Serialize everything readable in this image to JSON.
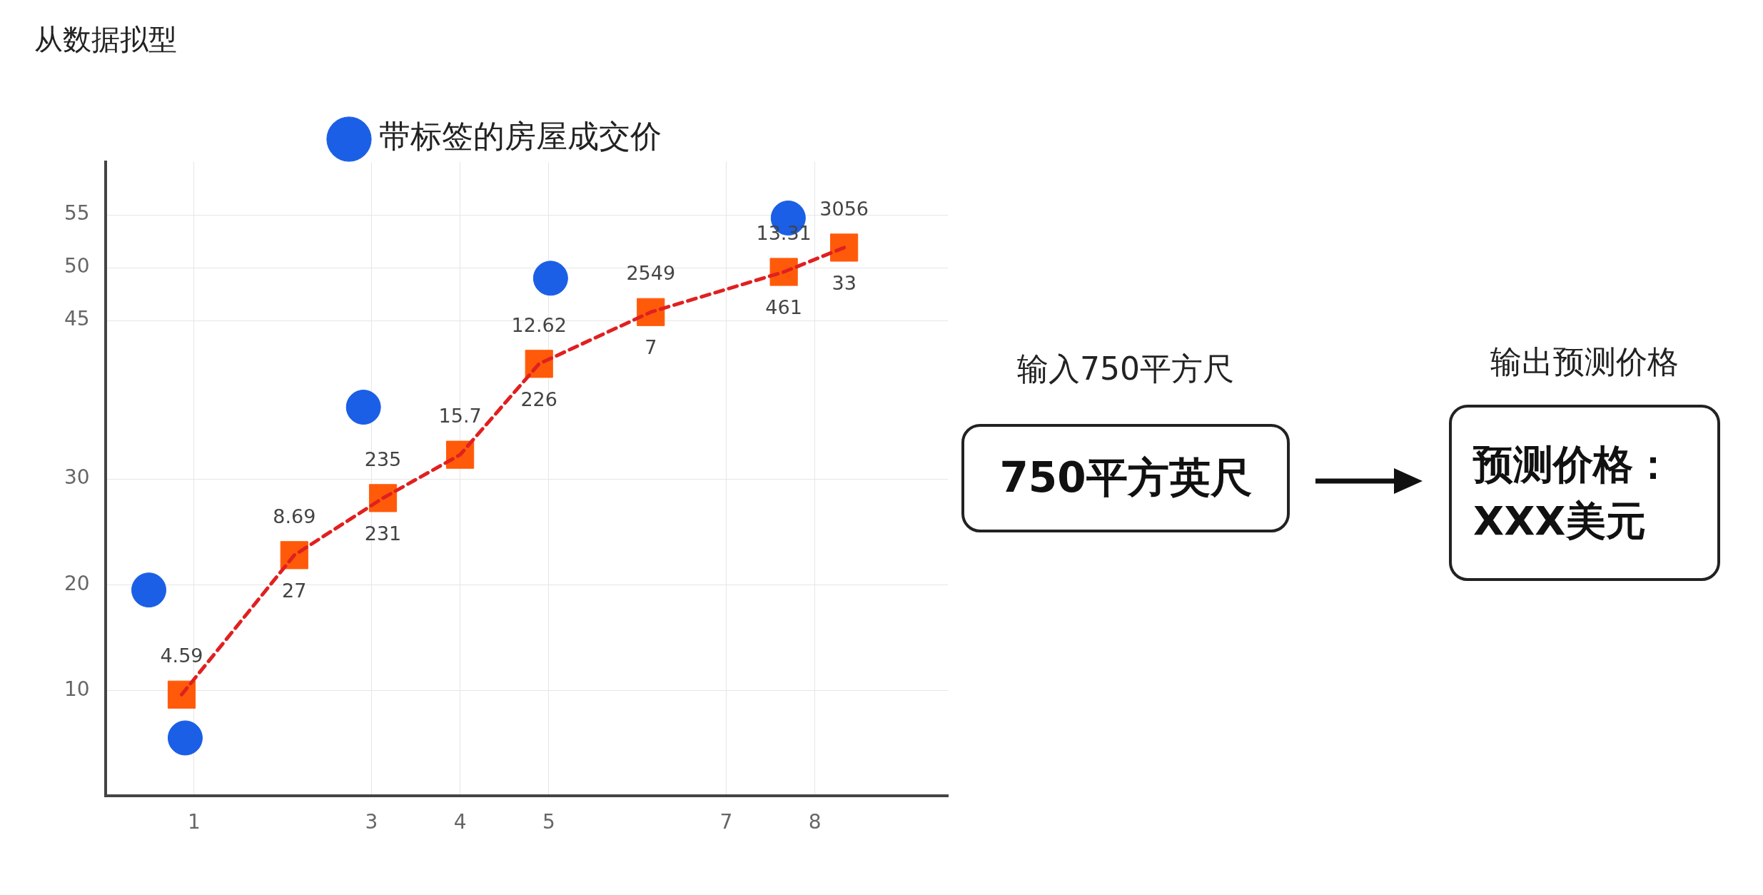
{
  "chart_data": [
    {
      "type": "scatter",
      "title": "从数据拟型",
      "xlim": [
        0,
        9.5
      ],
      "xticks": [
        1,
        3,
        4,
        5,
        7,
        8
      ],
      "ylim": [
        0,
        60
      ],
      "yticks": [
        10,
        20,
        30,
        45,
        50,
        55
      ],
      "grid": true,
      "legend": "top",
      "series": [
        {
          "type": "line",
          "color": "#e02020",
          "line_style": "dashed",
          "marker": "none",
          "x": [
            0.86,
            2.13,
            3.13,
            4,
            4.89,
            6.15,
            7.65,
            8.33
          ],
          "values": [
            9.6,
            22.8,
            28.2,
            32.3,
            40.9,
            45.8,
            49.6,
            51.9
          ]
        },
        {
          "type": "scatter",
          "color": "#ff5a0a",
          "marker": "square",
          "x": [
            0.86,
            2.13,
            3.13,
            4,
            4.89,
            6.15,
            7.65,
            8.33
          ],
          "values": [
            9.6,
            22.8,
            28.2,
            32.3,
            40.9,
            45.8,
            49.6,
            51.9
          ]
        },
        {
          "type": "scatter",
          "name": "带标签的房屋成交价",
          "color": "#1a5fe6",
          "marker": "circle",
          "x": [
            0.49,
            0.9,
            2.91,
            5.02,
            7.7
          ],
          "values": [
            19.5,
            5.5,
            36.8,
            49,
            54.7
          ]
        }
      ],
      "annotations": [
        {
          "text": "4.59",
          "x": 0.86,
          "y": 9.6
        },
        {
          "text": "8.69",
          "x": 2.13,
          "y": 22.8
        },
        {
          "text": "27",
          "x": 2.13,
          "y": 22.8
        },
        {
          "text": "235",
          "x": 3.13,
          "y": 28.2
        },
        {
          "text": "231",
          "x": 3.13,
          "y": 28.2
        },
        {
          "text": "15.7",
          "x": 4,
          "y": 32.3
        },
        {
          "text": "12.62",
          "x": 4.89,
          "y": 40.9
        },
        {
          "text": "226",
          "x": 4.89,
          "y": 40.9
        },
        {
          "text": "2549",
          "x": 6.15,
          "y": 45.8
        },
        {
          "text": "7",
          "x": 6.15,
          "y": 45.8
        },
        {
          "text": "13.31",
          "x": 7.65,
          "y": 49.6
        },
        {
          "text": "461",
          "x": 7.65,
          "y": 49.6
        },
        {
          "text": "3056",
          "x": 8.33,
          "y": 51.9
        },
        {
          "text": "33",
          "x": 8.33,
          "y": 51.9
        }
      ]
    },
    {
      "type": "other",
      "annotations": [
        "输入750平方尺",
        "750平方英尺",
        "输出预测价格",
        "预测价格：XXX美元"
      ]
    }
  ]
}
